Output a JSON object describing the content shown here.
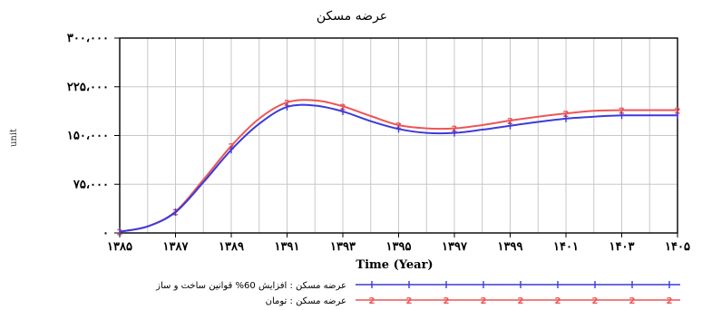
{
  "chart_data": {
    "type": "line",
    "title": "عرضه مسکن",
    "xlabel": "Time (Year)",
    "ylabel": "unit",
    "xlim": [
      1385,
      1405
    ],
    "ylim": [
      0,
      300000
    ],
    "grid": true,
    "x_ticks": [
      1385,
      1387,
      1389,
      1391,
      1393,
      1395,
      1397,
      1399,
      1401,
      1403,
      1405
    ],
    "x_tick_labels": [
      "۱۳۸۵",
      "۱۳۸۷",
      "۱۳۸۹",
      "۱۳۹۱",
      "۱۳۹۳",
      "۱۳۹۵",
      "۱۳۹۷",
      "۱۳۹۹",
      "۱۴۰۱",
      "۱۴۰۳",
      "۱۴۰۵"
    ],
    "y_ticks": [
      0,
      75000,
      150000,
      225000,
      300000
    ],
    "y_tick_labels": [
      "۰",
      "۷۵،۰۰۰",
      "۱۵۰،۰۰۰",
      "۲۲۵،۰۰۰",
      "۳۰۰،۰۰۰"
    ],
    "x": [
      1385,
      1386,
      1387,
      1388,
      1389,
      1390,
      1391,
      1392,
      1393,
      1394,
      1395,
      1396,
      1397,
      1398,
      1399,
      1400,
      1401,
      1402,
      1403,
      1404,
      1405
    ],
    "series": [
      {
        "name": "عرضه مسکن : افزایش 60% قوانین ساخت و ساز",
        "color": "#3b3bdc",
        "marker": "1",
        "values": [
          2000,
          10000,
          32000,
          78000,
          128000,
          168000,
          194000,
          196000,
          187000,
          172000,
          160000,
          154000,
          154000,
          159000,
          165000,
          171000,
          176000,
          179000,
          181000,
          181000,
          181000
        ]
      },
      {
        "name": "عرضه مسکن : تومان",
        "color": "#ee5555",
        "marker": "2",
        "values": [
          2000,
          10000,
          33000,
          82000,
          134000,
          176000,
          201000,
          204000,
          195000,
          180000,
          166000,
          161000,
          161000,
          166000,
          173000,
          179000,
          184000,
          188000,
          189000,
          189000,
          189000
        ]
      }
    ]
  }
}
